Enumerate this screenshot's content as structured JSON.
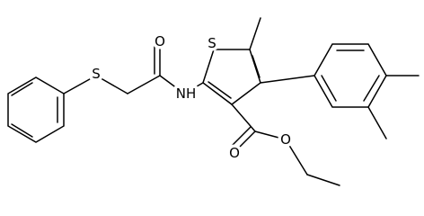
{
  "atoms": {
    "labels": [
      "S",
      "O",
      "NH",
      "S",
      "O",
      "O"
    ]
  }
}
